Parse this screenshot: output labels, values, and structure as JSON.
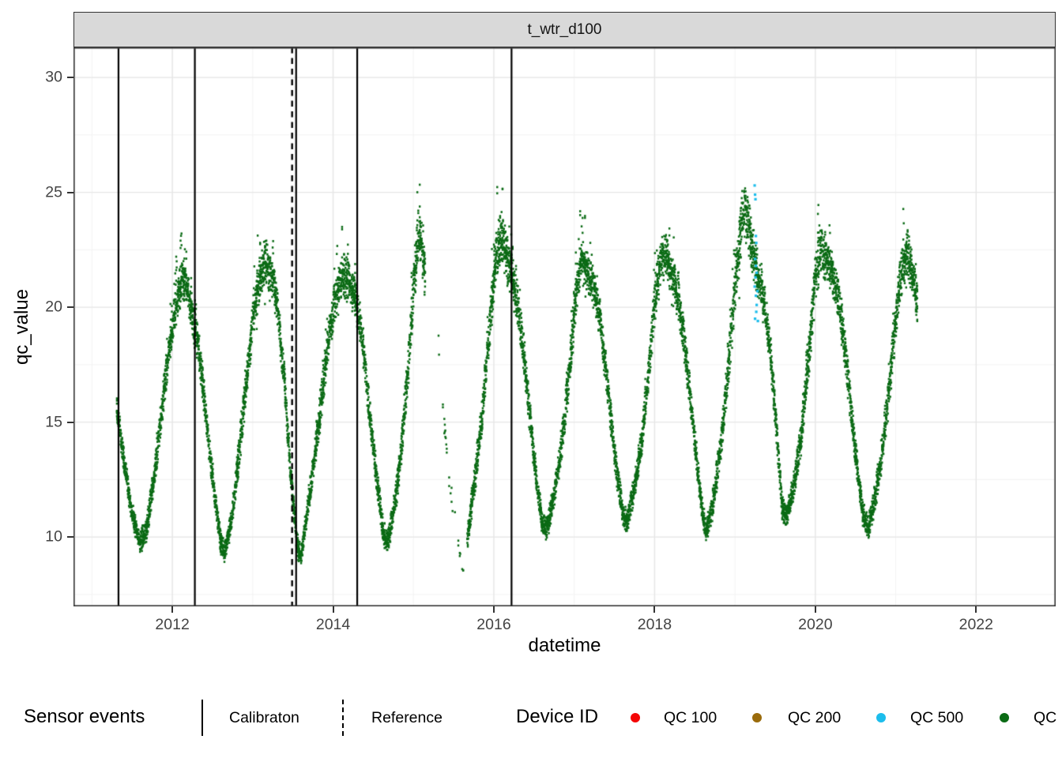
{
  "strip": {
    "title": "t_wtr_d100",
    "bg": "#d9d9d9"
  },
  "legend": {
    "sensor_events": {
      "title": "Sensor events",
      "items": [
        {
          "label": "Calibraton",
          "linetype": "solid"
        },
        {
          "label": "Reference",
          "linetype": "dashed"
        }
      ]
    },
    "device_id": {
      "title": "Device ID",
      "items": [
        {
          "label": "QC 100",
          "color": "#f40505"
        },
        {
          "label": "QC 200",
          "color": "#9a6b0b"
        },
        {
          "label": "QC 500",
          "color": "#1cbdec"
        },
        {
          "label": "QC",
          "color": "#0b6b15"
        }
      ]
    }
  },
  "chart_data": {
    "type": "scatter",
    "facet_title": "t_wtr_d100",
    "xlabel": "datetime",
    "ylabel": "qc_value",
    "x_domain": [
      2010.77,
      2022.99
    ],
    "y_domain": [
      6.98,
      31.31
    ],
    "x_ticks": [
      2012,
      2014,
      2016,
      2018,
      2020,
      2022
    ],
    "x_minor_ticks": [
      2011,
      2013,
      2015,
      2017,
      2019,
      2021,
      2023
    ],
    "y_ticks": [
      10,
      15,
      20,
      25,
      30
    ],
    "y_minor_ticks": [
      7.5,
      12.5,
      17.5,
      22.5,
      27.5
    ],
    "grid": {
      "major_color": "#e6e6e6",
      "minor_color": "#f3f3f3",
      "panel_border": "#3c3c3c"
    },
    "event_lines": {
      "color": "#000000",
      "calibration": [
        2011.33,
        2012.28,
        2013.54,
        2014.3,
        2016.22
      ],
      "reference": [
        2013.49
      ]
    },
    "series": [
      {
        "name": "QC",
        "color": "#0b6b15",
        "kind": "band",
        "segments": [
          {
            "density": 1,
            "anchors": [
              [
                2011.31,
                15.6,
                0.6,
                0.3
              ],
              [
                2011.4,
                13.2,
                0.5,
                0.2
              ],
              [
                2011.5,
                11.0,
                0.5,
                0.2
              ],
              [
                2011.6,
                9.7,
                0.4,
                0.3
              ],
              [
                2011.68,
                10.3,
                0.5,
                0.3
              ],
              [
                2011.78,
                12.8,
                0.6,
                0.4
              ],
              [
                2011.88,
                15.8,
                0.7,
                0.6
              ],
              [
                2011.96,
                18.2,
                0.8,
                0.9
              ],
              [
                2012.05,
                20.2,
                0.9,
                1.6
              ],
              [
                2012.12,
                21.2,
                0.9,
                1.7
              ],
              [
                2012.18,
                21.0,
                0.8,
                1.2
              ],
              [
                2012.25,
                19.6,
                0.9,
                0.9
              ],
              [
                2012.32,
                18.4,
                0.8,
                0.7
              ],
              [
                2012.4,
                15.8,
                0.7,
                0.4
              ],
              [
                2012.5,
                12.6,
                0.6,
                0.3
              ],
              [
                2012.6,
                9.8,
                0.5,
                0.2
              ],
              [
                2012.65,
                9.3,
                0.4,
                0.2
              ],
              [
                2012.73,
                10.6,
                0.5,
                0.3
              ],
              [
                2012.83,
                13.6,
                0.7,
                0.4
              ],
              [
                2012.93,
                17.0,
                0.8,
                0.7
              ],
              [
                2013.01,
                19.8,
                0.9,
                1.3
              ],
              [
                2013.09,
                21.4,
                1.0,
                1.9
              ],
              [
                2013.16,
                21.9,
                1.0,
                2.1
              ],
              [
                2013.24,
                21.4,
                0.9,
                1.4
              ],
              [
                2013.31,
                20.0,
                0.8,
                0.8
              ],
              [
                2013.39,
                16.9,
                0.8,
                0.5
              ],
              [
                2013.47,
                12.9,
                0.6,
                0.3
              ],
              [
                2013.56,
                9.5,
                0.5,
                0.3
              ],
              [
                2013.6,
                9.1,
                0.4,
                0.2
              ],
              [
                2013.67,
                10.9,
                0.5,
                0.3
              ],
              [
                2013.76,
                13.1,
                0.6,
                0.4
              ],
              [
                2013.86,
                16.1,
                0.8,
                0.6
              ],
              [
                2013.95,
                18.9,
                0.9,
                1.1
              ],
              [
                2014.03,
                20.4,
                0.9,
                1.4
              ],
              [
                2014.11,
                21.4,
                0.9,
                1.5
              ],
              [
                2014.19,
                21.2,
                0.9,
                1.3
              ],
              [
                2014.27,
                20.6,
                0.8,
                0.9
              ],
              [
                2014.35,
                18.9,
                0.8,
                0.6
              ],
              [
                2014.43,
                16.2,
                0.7,
                0.4
              ],
              [
                2014.53,
                12.9,
                0.6,
                0.3
              ],
              [
                2014.63,
                10.0,
                0.5,
                0.3
              ],
              [
                2014.68,
                9.8,
                0.5,
                0.3
              ],
              [
                2014.76,
                11.2,
                0.6,
                0.3
              ],
              [
                2014.85,
                13.8,
                0.7,
                0.5
              ],
              [
                2014.93,
                17.2,
                0.9,
                0.9
              ],
              [
                2015.0,
                20.8,
                1.1,
                1.8
              ],
              [
                2015.06,
                23.1,
                1.2,
                2.6
              ],
              [
                2015.11,
                22.6,
                1.0,
                1.6
              ],
              [
                2015.15,
                21.0,
                0.9,
                1.0
              ]
            ]
          },
          {
            "density": 0.16,
            "anchors": [
              [
                2015.3,
                19.2,
                0.6,
                0
              ],
              [
                2015.37,
                15.6,
                0.5,
                0
              ],
              [
                2015.45,
                12.3,
                0.5,
                0
              ],
              [
                2015.53,
                10.3,
                0.5,
                0
              ],
              [
                2015.6,
                8.7,
                0.4,
                0
              ],
              [
                2015.64,
                8.4,
                0.3,
                0
              ]
            ]
          },
          {
            "density": 1,
            "anchors": [
              [
                2015.67,
                9.9,
                0.5,
                0.3
              ],
              [
                2015.76,
                12.4,
                0.6,
                0.4
              ],
              [
                2015.86,
                15.4,
                0.8,
                0.7
              ],
              [
                2015.95,
                19.2,
                1.0,
                1.4
              ],
              [
                2016.03,
                22.2,
                1.1,
                2.2
              ],
              [
                2016.09,
                23.2,
                1.1,
                2.4
              ],
              [
                2016.16,
                22.1,
                1.0,
                1.6
              ],
              [
                2016.24,
                21.1,
                0.9,
                1.1
              ],
              [
                2016.32,
                19.6,
                0.8,
                0.8
              ],
              [
                2016.4,
                16.9,
                0.8,
                0.5
              ],
              [
                2016.5,
                13.4,
                0.6,
                0.3
              ],
              [
                2016.6,
                10.6,
                0.5,
                0.2
              ],
              [
                2016.66,
                10.3,
                0.5,
                0.2
              ],
              [
                2016.74,
                11.6,
                0.6,
                0.3
              ],
              [
                2016.84,
                13.9,
                0.7,
                0.5
              ],
              [
                2016.94,
                17.2,
                0.9,
                0.9
              ],
              [
                2017.02,
                20.6,
                1.0,
                1.6
              ],
              [
                2017.09,
                22.1,
                1.0,
                2.0
              ],
              [
                2017.16,
                21.6,
                0.9,
                1.4
              ],
              [
                2017.24,
                20.9,
                0.8,
                0.9
              ],
              [
                2017.32,
                19.5,
                0.8,
                0.6
              ],
              [
                2017.42,
                16.4,
                0.7,
                0.4
              ],
              [
                2017.52,
                13.0,
                0.6,
                0.3
              ],
              [
                2017.61,
                10.9,
                0.5,
                0.2
              ],
              [
                2017.66,
                10.7,
                0.5,
                0.2
              ],
              [
                2017.74,
                11.9,
                0.6,
                0.3
              ],
              [
                2017.84,
                14.2,
                0.7,
                0.5
              ],
              [
                2017.93,
                17.3,
                0.9,
                0.9
              ],
              [
                2018.01,
                20.6,
                1.0,
                1.7
              ],
              [
                2018.08,
                22.0,
                1.1,
                2.6
              ],
              [
                2018.14,
                22.4,
                1.0,
                2.2
              ],
              [
                2018.22,
                21.4,
                0.9,
                1.4
              ],
              [
                2018.3,
                20.3,
                0.9,
                0.9
              ],
              [
                2018.38,
                18.2,
                0.8,
                0.5
              ],
              [
                2018.48,
                14.8,
                0.7,
                0.3
              ],
              [
                2018.58,
                11.4,
                0.5,
                0.2
              ],
              [
                2018.64,
                10.2,
                0.5,
                0.2
              ],
              [
                2018.72,
                11.3,
                0.6,
                0.3
              ],
              [
                2018.82,
                13.9,
                0.7,
                0.5
              ],
              [
                2018.92,
                17.4,
                0.9,
                0.9
              ],
              [
                2019.0,
                21.0,
                1.1,
                1.9
              ],
              [
                2019.08,
                23.6,
                1.3,
                3.2
              ],
              [
                2019.13,
                24.3,
                1.3,
                4.4
              ],
              [
                2019.19,
                23.1,
                1.1,
                2.2
              ],
              [
                2019.27,
                21.6,
                1.0,
                1.5
              ],
              [
                2019.35,
                20.4,
                0.9,
                0.9
              ],
              [
                2019.43,
                18.4,
                0.8,
                0.5
              ],
              [
                2019.51,
                15.0,
                0.7,
                0.3
              ],
              [
                2019.59,
                11.2,
                0.5,
                0.2
              ],
              [
                2019.64,
                10.8,
                0.5,
                0.2
              ],
              [
                2019.72,
                12.0,
                0.6,
                0.3
              ],
              [
                2019.82,
                14.2,
                0.7,
                0.5
              ],
              [
                2019.91,
                17.6,
                0.9,
                0.9
              ],
              [
                2019.99,
                20.9,
                1.0,
                1.7
              ],
              [
                2020.06,
                22.6,
                1.1,
                2.4
              ],
              [
                2020.13,
                22.1,
                1.0,
                1.6
              ],
              [
                2020.21,
                21.5,
                0.9,
                1.1
              ],
              [
                2020.29,
                20.4,
                0.9,
                0.8
              ],
              [
                2020.39,
                17.4,
                0.8,
                0.4
              ],
              [
                2020.49,
                13.9,
                0.6,
                0.3
              ],
              [
                2020.59,
                11.0,
                0.5,
                0.2
              ],
              [
                2020.66,
                10.4,
                0.5,
                0.2
              ],
              [
                2020.74,
                11.6,
                0.6,
                0.3
              ],
              [
                2020.84,
                13.9,
                0.7,
                0.5
              ],
              [
                2020.93,
                16.9,
                0.9,
                0.8
              ],
              [
                2021.01,
                19.9,
                1.0,
                1.4
              ],
              [
                2021.08,
                21.9,
                1.1,
                2.0
              ],
              [
                2021.15,
                22.3,
                1.0,
                1.7
              ],
              [
                2021.21,
                21.4,
                0.9,
                1.1
              ],
              [
                2021.27,
                20.2,
                0.8,
                0.5
              ]
            ]
          }
        ]
      },
      {
        "name": "QC 500",
        "color": "#1cbdec",
        "kind": "points",
        "points": [
          [
            2019.245,
            25.3
          ],
          [
            2019.25,
            24.9
          ],
          [
            2019.255,
            24.7
          ],
          [
            2019.26,
            23.1
          ],
          [
            2019.265,
            22.8
          ],
          [
            2019.25,
            22.1
          ],
          [
            2019.26,
            21.8
          ],
          [
            2019.255,
            21.3
          ],
          [
            2019.245,
            20.9
          ],
          [
            2019.26,
            20.5
          ],
          [
            2019.27,
            20.1
          ],
          [
            2019.265,
            19.8
          ],
          [
            2019.25,
            19.5
          ],
          [
            2019.27,
            21.5
          ],
          [
            2019.28,
            20.7
          ],
          [
            2019.285,
            19.4
          ]
        ]
      }
    ]
  }
}
